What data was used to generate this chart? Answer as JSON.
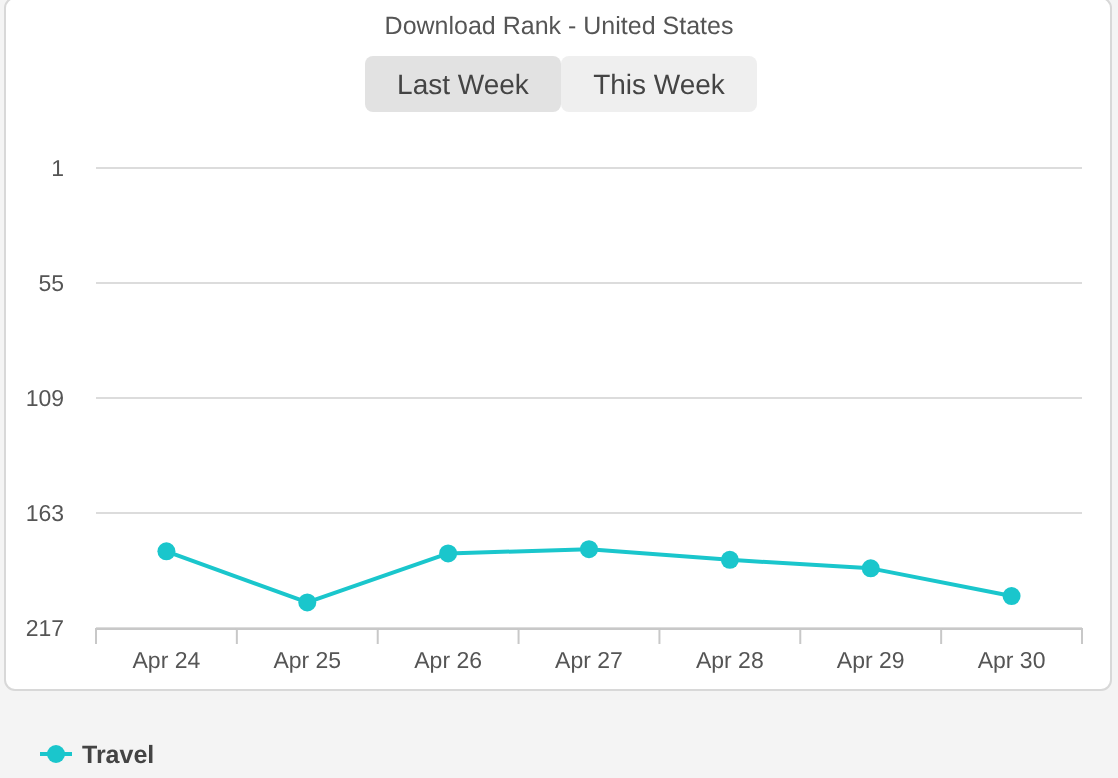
{
  "chart_data": {
    "type": "line",
    "title": "Download Rank - United States",
    "annotations": [
      "Last Week",
      "This Week"
    ],
    "categories": [
      "Apr 24",
      "Apr 25",
      "Apr 26",
      "Apr 27",
      "Apr 28",
      "Apr 29",
      "Apr 30"
    ],
    "series": [
      {
        "name": "Travel",
        "color": "#1ac6cc",
        "values": [
          181,
          205,
          182,
          180,
          185,
          189,
          202
        ]
      }
    ],
    "ylim": [
      217,
      1
    ],
    "yticks": [
      1,
      55,
      109,
      163,
      217
    ],
    "grid": "y",
    "legend": "bottom left",
    "marker": "circle",
    "line_style": "solid"
  }
}
